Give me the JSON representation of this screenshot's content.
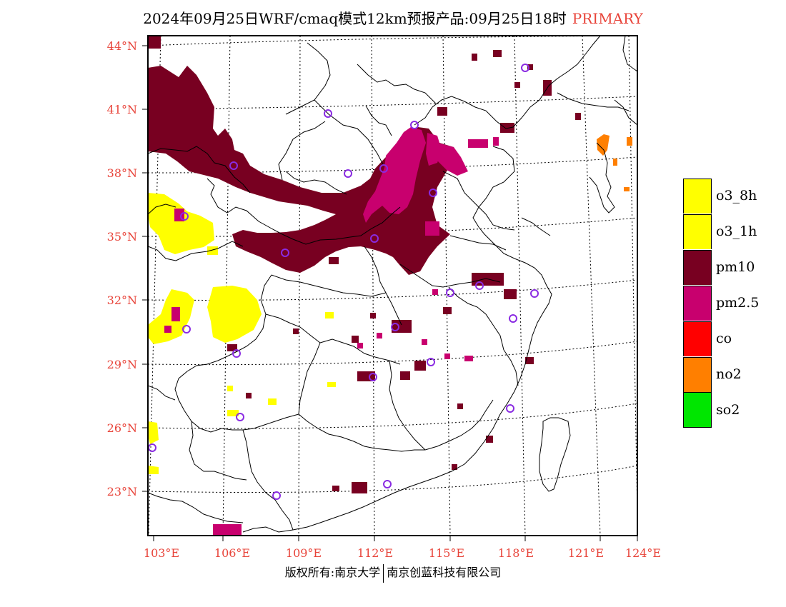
{
  "title": {
    "main": "2024年09月25日WRF/cmaq模式12km预报产品:09月25日18时",
    "badge": "PRIMARY"
  },
  "map": {
    "lat_labels": [
      "44°N",
      "41°N",
      "38°N",
      "35°N",
      "32°N",
      "29°N",
      "26°N",
      "23°N"
    ],
    "lon_labels": [
      "103°E",
      "106°E",
      "109°E",
      "112°E",
      "115°E",
      "118°E",
      "121°E",
      "124°E"
    ],
    "colors": {
      "o3_8h": "#ffff00",
      "o3_1h": "#ffff00",
      "pm10": "#780021",
      "pm25": "#c8006e",
      "co": "#ff0000",
      "no2": "#ff7f00",
      "so2": "#00e600",
      "station": "#8a2be2",
      "axis_label": "#e8443a"
    }
  },
  "legend": {
    "items": [
      {
        "label": "o3_8h",
        "color": "#ffff00"
      },
      {
        "label": "o3_1h",
        "color": "#ffff00"
      },
      {
        "label": "pm10",
        "color": "#780021"
      },
      {
        "label": "pm2.5",
        "color": "#c8006e"
      },
      {
        "label": "co",
        "color": "#ff0000"
      },
      {
        "label": "no2",
        "color": "#ff7f00"
      },
      {
        "label": "so2",
        "color": "#00e600"
      }
    ]
  },
  "copyright": {
    "left": "版权所有:南京大学",
    "right": "南京创蓝科技有限公司"
  }
}
